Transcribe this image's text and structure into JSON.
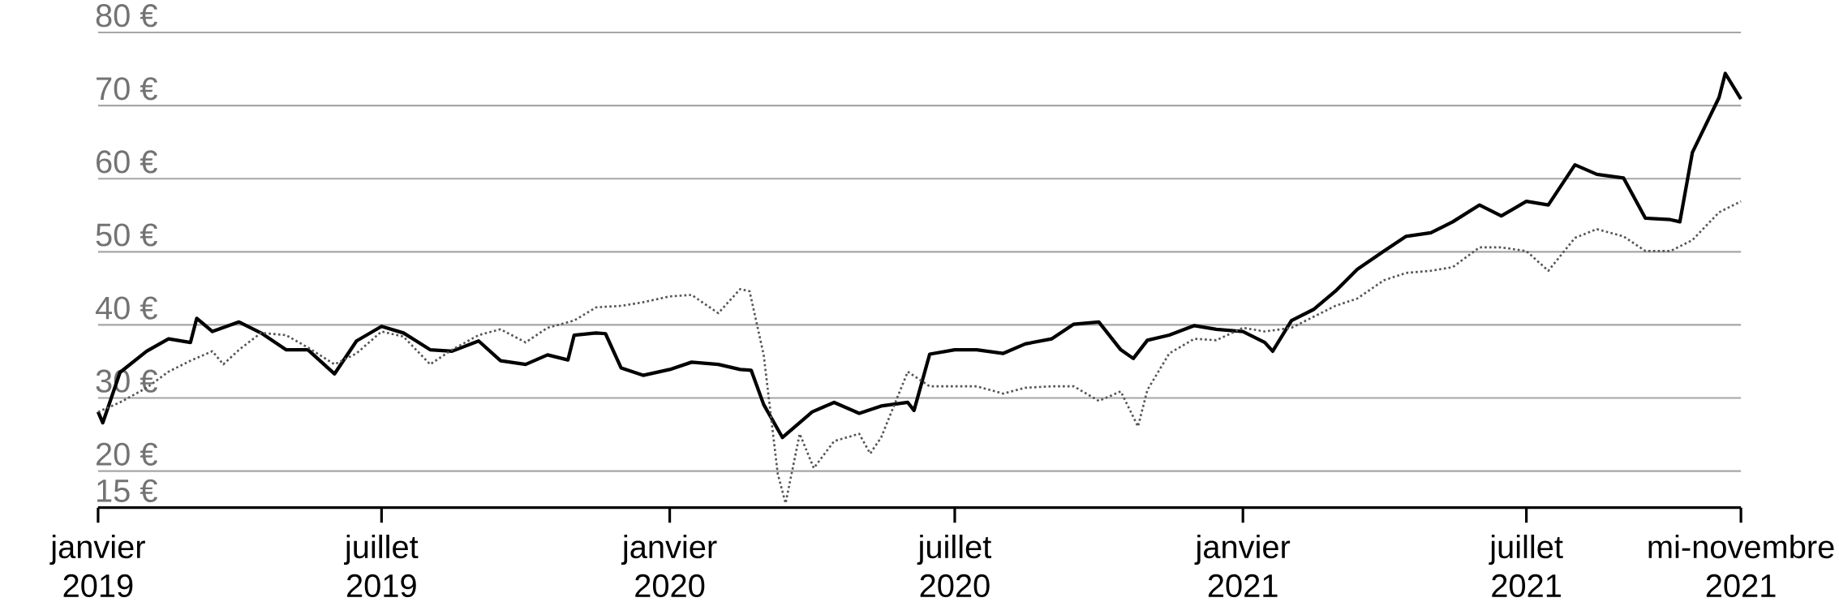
{
  "chart_data": {
    "type": "line",
    "xlim": [
      "2019-01-01",
      "2021-11-15"
    ],
    "xticks": [
      {
        "value": "2019-01-01",
        "label": "janvier 2019"
      },
      {
        "value": "2019-07-01",
        "label": "juillet 2019"
      },
      {
        "value": "2020-01-01",
        "label": "janvier 2020"
      },
      {
        "value": "2020-07-01",
        "label": "juillet 2020"
      },
      {
        "value": "2021-01-01",
        "label": "janvier 2021"
      },
      {
        "value": "2021-07-01",
        "label": "juillet 2021"
      },
      {
        "value": "2021-11-15",
        "label": "mi-novembre 2021"
      }
    ],
    "ylim": [
      15,
      80
    ],
    "yticks": [
      {
        "value": 15,
        "label": "15 €"
      },
      {
        "value": 20,
        "label": "20 €"
      },
      {
        "value": 30,
        "label": "30 €"
      },
      {
        "value": 40,
        "label": "40 €"
      },
      {
        "value": 50,
        "label": "50 €"
      },
      {
        "value": 60,
        "label": "60 €"
      },
      {
        "value": 70,
        "label": "70 €"
      },
      {
        "value": 80,
        "label": "80 €"
      }
    ],
    "grid": "y",
    "marker": "none",
    "series": [
      {
        "color": "#000000",
        "line_style": "solid",
        "x": [
          "2019-01-01",
          "2019-01-04",
          "2019-01-15",
          "2019-02-01",
          "2019-02-15",
          "2019-03-01",
          "2019-03-05",
          "2019-03-15",
          "2019-04-01",
          "2019-04-15",
          "2019-05-01",
          "2019-05-15",
          "2019-06-01",
          "2019-06-15",
          "2019-07-01",
          "2019-07-15",
          "2019-08-01",
          "2019-08-15",
          "2019-09-01",
          "2019-09-15",
          "2019-10-01",
          "2019-10-15",
          "2019-10-28",
          "2019-11-01",
          "2019-11-15",
          "2019-11-21",
          "2019-12-01",
          "2019-12-15",
          "2020-01-01",
          "2020-01-15",
          "2020-02-01",
          "2020-02-15",
          "2020-02-22",
          "2020-03-01",
          "2020-03-13",
          "2020-04-01",
          "2020-04-15",
          "2020-05-01",
          "2020-05-15",
          "2020-06-01",
          "2020-06-05",
          "2020-06-15",
          "2020-07-01",
          "2020-07-15",
          "2020-08-01",
          "2020-08-15",
          "2020-09-01",
          "2020-09-15",
          "2020-10-01",
          "2020-10-15",
          "2020-10-23",
          "2020-11-01",
          "2020-11-15",
          "2020-12-01",
          "2020-12-15",
          "2021-01-01",
          "2021-01-15",
          "2021-01-20",
          "2021-02-01",
          "2021-02-15",
          "2021-03-01",
          "2021-03-15",
          "2021-04-01",
          "2021-04-15",
          "2021-05-01",
          "2021-05-15",
          "2021-06-01",
          "2021-06-15",
          "2021-07-01",
          "2021-07-15",
          "2021-08-01",
          "2021-08-15",
          "2021-09-01",
          "2021-09-15",
          "2021-10-01",
          "2021-10-07",
          "2021-10-15",
          "2021-11-01",
          "2021-11-05",
          "2021-11-15"
        ],
        "values": [
          28.1,
          26.6,
          33.5,
          36.4,
          38.1,
          37.6,
          40.9,
          39.1,
          40.4,
          38.9,
          36.6,
          36.6,
          33.3,
          37.8,
          39.8,
          38.9,
          36.6,
          36.4,
          37.8,
          35.1,
          34.6,
          35.9,
          35.2,
          38.6,
          38.9,
          38.8,
          34.1,
          33.1,
          33.9,
          34.9,
          34.6,
          33.9,
          33.8,
          29.1,
          24.6,
          28.1,
          29.4,
          27.9,
          28.9,
          29.4,
          28.3,
          36.0,
          36.6,
          36.6,
          36.1,
          37.4,
          38.1,
          40.1,
          40.4,
          36.6,
          35.4,
          37.9,
          38.6,
          39.9,
          39.4,
          39.1,
          37.6,
          36.4,
          40.6,
          42.1,
          44.6,
          47.6,
          50.1,
          52.1,
          52.6,
          54.1,
          56.4,
          54.9,
          56.9,
          56.4,
          61.9,
          60.6,
          60.1,
          54.6,
          54.4,
          54.1,
          63.6,
          71.1,
          74.4,
          70.9
        ]
      },
      {
        "color": "#555555",
        "line_style": "dotted",
        "x": [
          "2019-01-01",
          "2019-01-15",
          "2019-02-01",
          "2019-02-15",
          "2019-03-01",
          "2019-03-15",
          "2019-03-22",
          "2019-04-01",
          "2019-04-15",
          "2019-05-01",
          "2019-05-15",
          "2019-06-01",
          "2019-06-15",
          "2019-07-01",
          "2019-07-15",
          "2019-08-01",
          "2019-08-15",
          "2019-09-01",
          "2019-09-15",
          "2019-10-01",
          "2019-10-15",
          "2019-11-01",
          "2019-11-15",
          "2019-12-01",
          "2019-12-15",
          "2020-01-01",
          "2020-01-15",
          "2020-02-01",
          "2020-02-15",
          "2020-02-21",
          "2020-03-01",
          "2020-03-10",
          "2020-03-15",
          "2020-03-24",
          "2020-04-02",
          "2020-04-15",
          "2020-05-01",
          "2020-05-08",
          "2020-05-15",
          "2020-06-01",
          "2020-06-15",
          "2020-07-01",
          "2020-07-15",
          "2020-08-01",
          "2020-08-15",
          "2020-09-01",
          "2020-09-15",
          "2020-10-01",
          "2020-10-15",
          "2020-10-26",
          "2020-11-01",
          "2020-11-15",
          "2020-12-01",
          "2020-12-15",
          "2021-01-01",
          "2021-01-15",
          "2021-02-01",
          "2021-02-15",
          "2021-03-01",
          "2021-03-15",
          "2021-04-01",
          "2021-04-15",
          "2021-05-01",
          "2021-05-15",
          "2021-06-01",
          "2021-06-15",
          "2021-07-01",
          "2021-07-15",
          "2021-08-01",
          "2021-08-15",
          "2021-09-01",
          "2021-09-15",
          "2021-10-01",
          "2021-10-15",
          "2021-11-01",
          "2021-11-15"
        ],
        "values": [
          28.1,
          29.4,
          31.4,
          33.6,
          35.1,
          36.4,
          34.6,
          36.6,
          38.9,
          38.6,
          36.9,
          34.6,
          36.1,
          39.1,
          38.4,
          34.6,
          36.6,
          38.6,
          39.4,
          37.6,
          39.6,
          40.6,
          42.4,
          42.6,
          43.1,
          43.9,
          44.1,
          41.6,
          44.9,
          44.6,
          35.9,
          19.6,
          15.6,
          25.1,
          20.4,
          24.1,
          25.1,
          22.4,
          24.6,
          33.6,
          31.6,
          31.6,
          31.6,
          30.6,
          31.4,
          31.6,
          31.6,
          29.6,
          30.9,
          26.1,
          31.1,
          36.1,
          38.1,
          37.9,
          39.6,
          39.1,
          39.6,
          41.1,
          42.6,
          43.6,
          46.1,
          47.1,
          47.4,
          47.9,
          50.6,
          50.6,
          50.1,
          47.4,
          51.9,
          53.1,
          52.1,
          50.1,
          50.1,
          51.6,
          55.4,
          56.9
        ]
      }
    ]
  }
}
